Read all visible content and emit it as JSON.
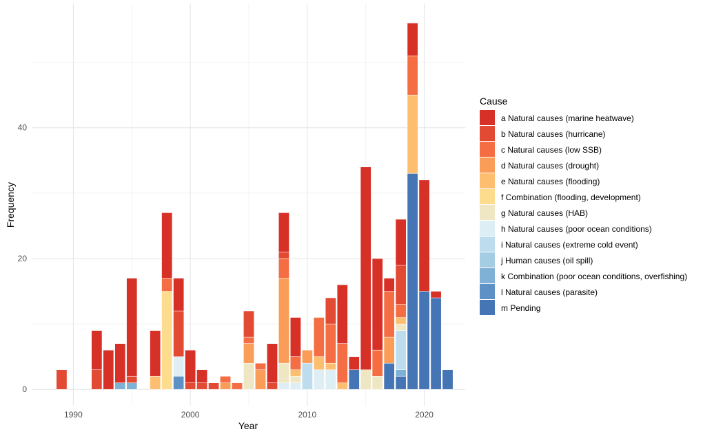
{
  "chart_data": {
    "type": "bar",
    "stacked": true,
    "title": "",
    "xlabel": "Year",
    "ylabel": "Frequency",
    "xlim": [
      1986.5,
      2023.5
    ],
    "ylim": [
      -2.5,
      59
    ],
    "x_ticks": [
      1990,
      2000,
      2010,
      2020
    ],
    "y_ticks": [
      0,
      20,
      40
    ],
    "grid": true,
    "legend_position": "right",
    "legend_title": "Cause",
    "categories": [
      {
        "key": "a",
        "label": "a Natural causes (marine heatwave)",
        "color": "#D73027"
      },
      {
        "key": "b",
        "label": "b Natural causes (hurricane)",
        "color": "#E34A33"
      },
      {
        "key": "c",
        "label": "c Natural causes (low SSB)",
        "color": "#F46D43"
      },
      {
        "key": "d",
        "label": "d Natural causes (drought)",
        "color": "#F99D59"
      },
      {
        "key": "e",
        "label": "e Natural causes (flooding)",
        "color": "#FDBF6F"
      },
      {
        "key": "f",
        "label": "f Combination (flooding, development)",
        "color": "#FDDC8E"
      },
      {
        "key": "g",
        "label": "g Natural causes (HAB)",
        "color": "#EFE7C4"
      },
      {
        "key": "h",
        "label": "h Natural causes (poor ocean conditions)",
        "color": "#DDEEF5"
      },
      {
        "key": "i",
        "label": "i Natural causes (extreme cold event)",
        "color": "#BDDDEE"
      },
      {
        "key": "j",
        "label": "j Human causes (oil spill)",
        "color": "#A4CCE3"
      },
      {
        "key": "k",
        "label": "k Combination (poor ocean conditions, overfishing)",
        "color": "#7FB1D6"
      },
      {
        "key": "l",
        "label": "l Natural causes (parasite)",
        "color": "#5E92C7"
      },
      {
        "key": "m",
        "label": "m Pending",
        "color": "#4575B4"
      }
    ],
    "bars": [
      {
        "year": 1989,
        "stack": {
          "b": 3
        }
      },
      {
        "year": 1992,
        "stack": {
          "a": 6,
          "b": 3
        }
      },
      {
        "year": 1993,
        "stack": {
          "a": 6
        }
      },
      {
        "year": 1994,
        "stack": {
          "a": 6,
          "k": 1
        }
      },
      {
        "year": 1995,
        "stack": {
          "a": 15,
          "b": 1,
          "k": 1
        }
      },
      {
        "year": 1997,
        "stack": {
          "a": 7,
          "e": 2
        }
      },
      {
        "year": 1998,
        "stack": {
          "a": 10,
          "c": 2,
          "f": 15
        }
      },
      {
        "year": 1999,
        "stack": {
          "a": 5,
          "b": 7,
          "h": 3,
          "l": 2
        }
      },
      {
        "year": 2000,
        "stack": {
          "a": 5,
          "b": 1
        }
      },
      {
        "year": 2001,
        "stack": {
          "a": 2,
          "b": 1
        }
      },
      {
        "year": 2002,
        "stack": {
          "b": 1
        }
      },
      {
        "year": 2003,
        "stack": {
          "c": 1,
          "d": 1
        }
      },
      {
        "year": 2004,
        "stack": {
          "c": 1
        }
      },
      {
        "year": 2005,
        "stack": {
          "b": 4,
          "c": 1,
          "d": 3,
          "g": 4
        }
      },
      {
        "year": 2006,
        "stack": {
          "c": 1,
          "d": 3
        }
      },
      {
        "year": 2007,
        "stack": {
          "a": 6,
          "b": 1
        }
      },
      {
        "year": 2008,
        "stack": {
          "a": 6,
          "b": 1,
          "c": 3,
          "d": 13,
          "g": 3,
          "h": 1
        }
      },
      {
        "year": 2009,
        "stack": {
          "a": 6,
          "c": 2,
          "e": 1,
          "g": 1,
          "h": 1
        }
      },
      {
        "year": 2010,
        "stack": {
          "d": 2,
          "i": 4
        }
      },
      {
        "year": 2011,
        "stack": {
          "c": 6,
          "e": 2,
          "h": 3
        }
      },
      {
        "year": 2012,
        "stack": {
          "b": 4,
          "c": 6,
          "e": 1,
          "h": 3
        }
      },
      {
        "year": 2013,
        "stack": {
          "a": 9,
          "c": 6,
          "e": 1
        }
      },
      {
        "year": 2014,
        "stack": {
          "a": 2,
          "m": 3
        }
      },
      {
        "year": 2015,
        "stack": {
          "a": 31,
          "g": 3
        }
      },
      {
        "year": 2016,
        "stack": {
          "a": 14,
          "c": 4,
          "g": 2
        }
      },
      {
        "year": 2017,
        "stack": {
          "a": 2,
          "c": 7,
          "d": 4,
          "m": 4
        }
      },
      {
        "year": 2018,
        "stack": {
          "a": 7,
          "b": 6,
          "c": 2,
          "e": 1,
          "g": 1,
          "i": 6,
          "k": 1,
          "m": 2
        }
      },
      {
        "year": 2019,
        "stack": {
          "a": 5,
          "c": 6,
          "e": 12,
          "m": 33
        }
      },
      {
        "year": 2020,
        "stack": {
          "a": 17,
          "m": 15
        }
      },
      {
        "year": 2021,
        "stack": {
          "a": 1,
          "m": 14
        }
      },
      {
        "year": 2022,
        "stack": {
          "m": 3
        }
      }
    ]
  }
}
